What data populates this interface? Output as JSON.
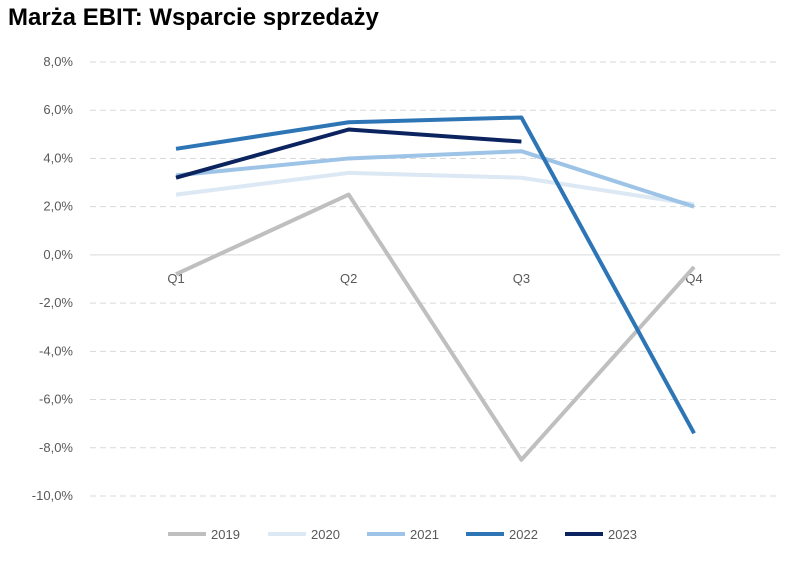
{
  "chart_data": {
    "type": "line",
    "title": "Marża EBIT: Wsparcie sprzedaży",
    "categories": [
      "Q1",
      "Q2",
      "Q3",
      "Q4"
    ],
    "ylim": [
      -10,
      8
    ],
    "yticks": [
      8,
      6,
      4,
      2,
      0,
      -2,
      -4,
      -6,
      -8,
      -10
    ],
    "ytick_labels": [
      "8,0%",
      "6,0%",
      "4,0%",
      "2,0%",
      "0,0%",
      "-2,0%",
      "-4,0%",
      "-6,0%",
      "-8,0%",
      "-10,0%"
    ],
    "grid": true,
    "legend_position": "bottom",
    "series": [
      {
        "name": "2019",
        "color": "#bfbfbf",
        "values": [
          -0.8,
          2.5,
          -8.5,
          -0.5
        ]
      },
      {
        "name": "2020",
        "color": "#dde8f5",
        "values": [
          2.5,
          3.4,
          3.2,
          2.1
        ]
      },
      {
        "name": "2021",
        "color": "#9dc3e6",
        "values": [
          3.3,
          4.0,
          4.3,
          2.0
        ]
      },
      {
        "name": "2022",
        "color": "#2e75b6",
        "values": [
          4.4,
          5.5,
          5.7,
          -7.4
        ]
      },
      {
        "name": "2023",
        "color": "#0b2460",
        "values": [
          3.2,
          5.2,
          4.7,
          null
        ]
      }
    ]
  }
}
